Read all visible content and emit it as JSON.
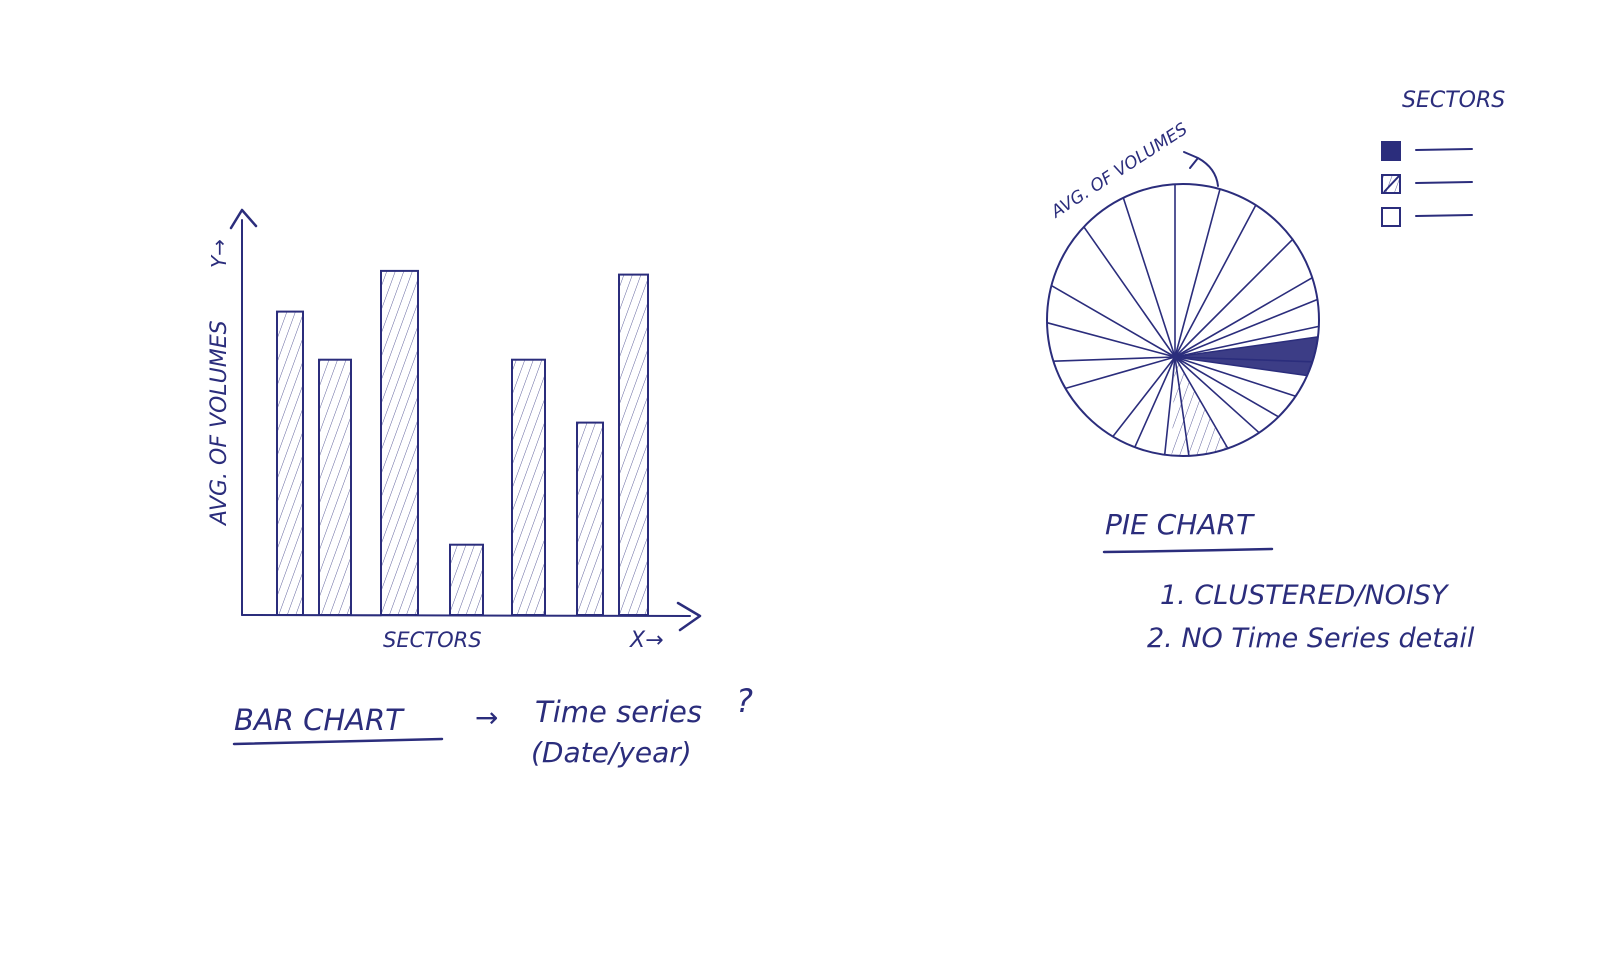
{
  "ink_color": "#2b2d7c",
  "bar_chart": {
    "type": "bar",
    "ylabel": "AVG. OF VOLUMES",
    "y_arrow_label": "Y→",
    "xlabel": "SECTORS",
    "x_arrow_label": "X→",
    "values": [
      82,
      69,
      93,
      19,
      69,
      52,
      92
    ],
    "ylim": [
      0,
      100
    ],
    "title": "BAR CHART",
    "note_arrow": "→",
    "note_line1": "Time series",
    "note_question": "?",
    "note_line2": "(Date/year)"
  },
  "pie_chart": {
    "type": "pie",
    "slice_label": "AVG. OF VOLUMES",
    "boundary_angles": [
      -2,
      12,
      22,
      30,
      45,
      62,
      75,
      90,
      108,
      125,
      150,
      165,
      182,
      196,
      232,
      246,
      264,
      278,
      300,
      318,
      330,
      342
    ],
    "filled_slice": [
      -8,
      8
    ],
    "hatched_slice": [
      268,
      300
    ],
    "title": "PIE CHART",
    "legend_title": "SECTORS",
    "legend": [
      {
        "style": "filled"
      },
      {
        "style": "hatched"
      },
      {
        "style": "empty"
      }
    ],
    "notes": [
      "1. CLUSTERED/NOISY",
      "2. NO Time Series detail"
    ]
  }
}
